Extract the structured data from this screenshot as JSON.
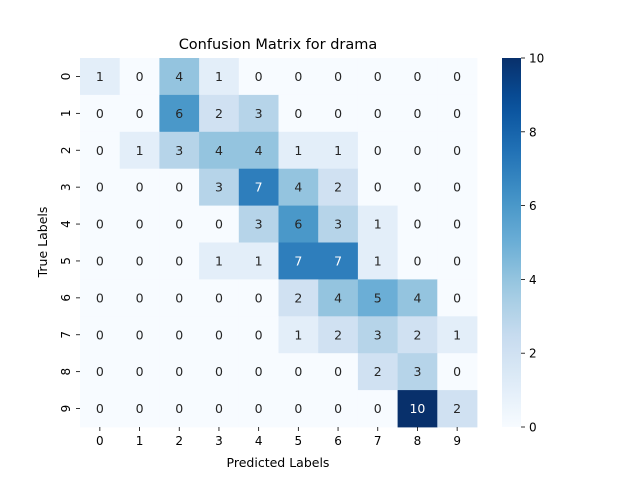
{
  "chart_data": {
    "type": "heatmap",
    "title": "Confusion Matrix for drama",
    "xlabel": "Predicted Labels",
    "ylabel": "True Labels",
    "x_categories": [
      "0",
      "1",
      "2",
      "3",
      "4",
      "5",
      "6",
      "7",
      "8",
      "9"
    ],
    "y_categories": [
      "0",
      "1",
      "2",
      "3",
      "4",
      "5",
      "6",
      "7",
      "8",
      "9"
    ],
    "values": [
      [
        1,
        0,
        4,
        1,
        0,
        0,
        0,
        0,
        0,
        0
      ],
      [
        0,
        0,
        6,
        2,
        3,
        0,
        0,
        0,
        0,
        0
      ],
      [
        0,
        1,
        3,
        4,
        4,
        1,
        1,
        0,
        0,
        0
      ],
      [
        0,
        0,
        0,
        3,
        7,
        4,
        2,
        0,
        0,
        0
      ],
      [
        0,
        0,
        0,
        0,
        3,
        6,
        3,
        1,
        0,
        0
      ],
      [
        0,
        0,
        0,
        1,
        1,
        7,
        7,
        1,
        0,
        0
      ],
      [
        0,
        0,
        0,
        0,
        0,
        2,
        4,
        5,
        4,
        0
      ],
      [
        0,
        0,
        0,
        0,
        0,
        1,
        2,
        3,
        2,
        1
      ],
      [
        0,
        0,
        0,
        0,
        0,
        0,
        0,
        2,
        3,
        0
      ],
      [
        0,
        0,
        0,
        0,
        0,
        0,
        0,
        0,
        10,
        2
      ]
    ],
    "colorbar": {
      "min": 0,
      "max": 10,
      "ticks": [
        "0",
        "2",
        "4",
        "6",
        "8",
        "10"
      ]
    },
    "colormap": "Blues",
    "colors": {
      "low": "#f7fbff",
      "high": "#08306b"
    }
  }
}
